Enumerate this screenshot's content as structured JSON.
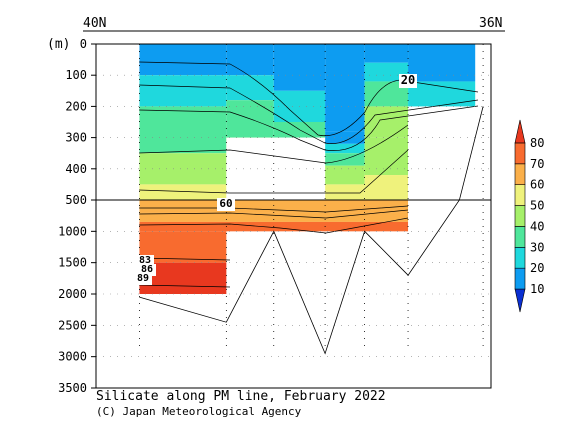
{
  "chart_data": {
    "type": "heatmap",
    "title": "Silicate along PM line, February 2022",
    "credit": "(C) Japan Meteorological Agency",
    "ylabel": "(m)",
    "x_left_label": "40N",
    "x_right_label": "36N",
    "y_axis_upper": {
      "range": [
        0,
        500
      ],
      "ticks": [
        0,
        100,
        200,
        300,
        400,
        500
      ]
    },
    "y_axis_lower": {
      "range": [
        500,
        3500
      ],
      "ticks": [
        1000,
        1500,
        2000,
        2500,
        3000,
        3500
      ]
    },
    "colorbar": {
      "levels": [
        10,
        20,
        30,
        40,
        50,
        60,
        70,
        80
      ],
      "colors": [
        "#0a2fd2",
        "#0d9cf1",
        "#1fd8dd",
        "#4fe69b",
        "#a6f06a",
        "#eff27c",
        "#fbb04a",
        "#f86b2f",
        "#e8381f"
      ]
    },
    "contour_labels": [
      "20",
      "60",
      "83",
      "86",
      "89"
    ],
    "stations_x_fraction": [
      0.15,
      0.33,
      0.45,
      0.58,
      0.68,
      0.79,
      0.98
    ],
    "bottom_depth_m": [
      2050,
      2450,
      1000,
      2950,
      1000,
      1700,
      500,
      200
    ],
    "data_columns": [
      {
        "name": "st1",
        "bounds_upper": [
          0,
          100,
          200,
          350,
          450,
          500
        ],
        "values": [
          10,
          25,
          35,
          45,
          55
        ]
      },
      {
        "name": "st2",
        "bounds_upper": [
          0,
          100,
          180,
          300,
          450,
          500
        ],
        "values": [
          10,
          25,
          35,
          45,
          55
        ]
      },
      {
        "name": "st3",
        "bounds_upper": [
          0,
          150,
          250,
          300
        ],
        "values": [
          10,
          25,
          35
        ]
      },
      {
        "name": "st4",
        "bounds_upper": [
          0,
          280,
          320,
          350,
          390,
          450,
          500
        ],
        "values": [
          10,
          15,
          25,
          35,
          45,
          55
        ]
      },
      {
        "name": "st5",
        "bounds_upper": [
          0,
          60,
          120,
          200,
          300,
          420,
          500
        ],
        "values": [
          10,
          20,
          30,
          40,
          45,
          55
        ]
      },
      {
        "name": "st6",
        "bounds_upper": [
          0,
          120,
          200
        ],
        "values": [
          15,
          25
        ]
      }
    ],
    "lower_bands": [
      {
        "depth_m": [
          500,
          700
        ],
        "value": 62
      },
      {
        "depth_m": [
          700,
          850
        ],
        "value": 65
      },
      {
        "depth_m": [
          850,
          1000
        ],
        "value": 70
      },
      {
        "depth_m": [
          1000,
          1500
        ],
        "value": 75
      },
      {
        "depth_m": [
          1500,
          2000
        ],
        "value": 82
      }
    ]
  }
}
